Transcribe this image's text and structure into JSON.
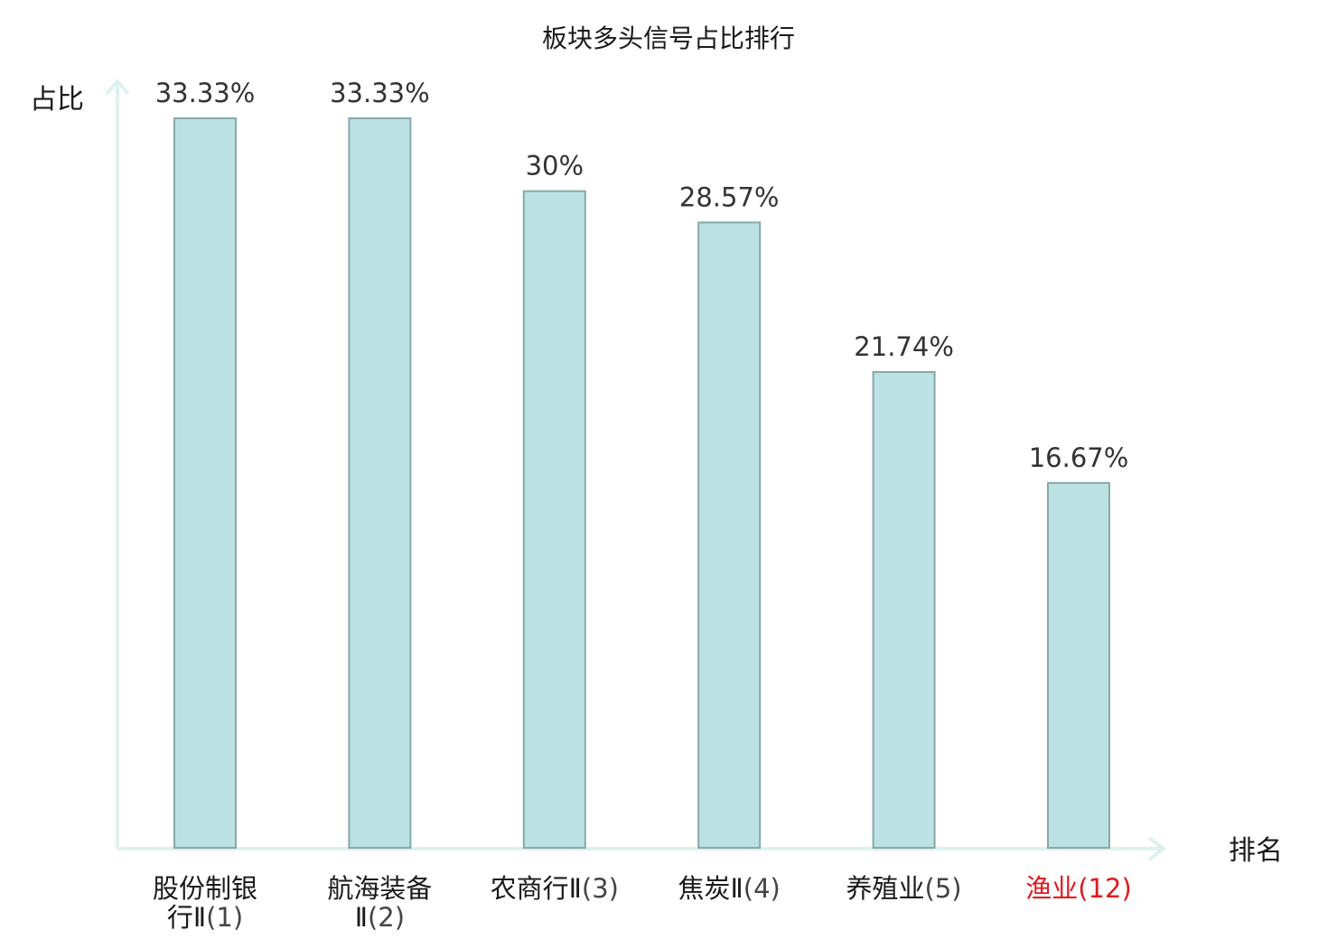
{
  "chart_data": {
    "type": "bar",
    "title": "板块多头信号占比排行",
    "ylabel": "占比",
    "xlabel": "排名",
    "categories": [
      {
        "lines": [
          "股份制银",
          "行Ⅱ"
        ],
        "rank": "(1)",
        "highlight": false
      },
      {
        "lines": [
          "航海装备",
          "Ⅱ"
        ],
        "rank": "(2)",
        "highlight": false
      },
      {
        "lines": [
          "农商行Ⅱ"
        ],
        "rank": "(3)",
        "highlight": false
      },
      {
        "lines": [
          "焦炭Ⅱ"
        ],
        "rank": "(4)",
        "highlight": false
      },
      {
        "lines": [
          "养殖业"
        ],
        "rank": "(5)",
        "highlight": false
      },
      {
        "lines": [
          "渔业"
        ],
        "rank": "(12)",
        "highlight": true
      }
    ],
    "values": [
      33.33,
      33.33,
      30,
      28.57,
      21.74,
      16.67
    ],
    "value_labels": [
      "33.33%",
      "33.33%",
      "30%",
      "28.57%",
      "21.74%",
      "16.67%"
    ],
    "ylim": [
      0,
      35
    ],
    "grid": false,
    "legend": "none"
  },
  "colors": {
    "bar_fill": "#bce1e3",
    "bar_stroke": "#86a9aa",
    "axis": "#dff1ee",
    "highlight": "#e0191c"
  }
}
